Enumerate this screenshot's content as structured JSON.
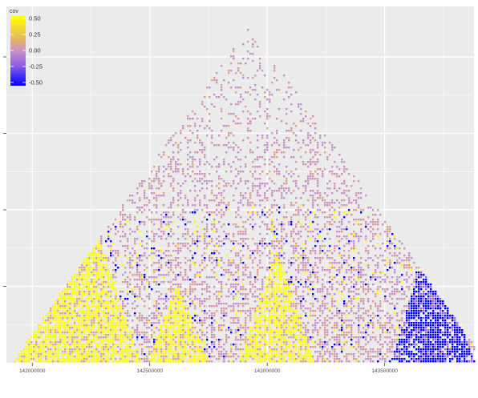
{
  "chart_data": {
    "type": "heatmap",
    "title": "",
    "xlabel": "",
    "ylabel": "",
    "x_ticks": [
      "142000000",
      "142500000",
      "143000000",
      "143500000"
    ],
    "x_tick_values": [
      142000000,
      142500000,
      143000000,
      143500000
    ],
    "xlim": [
      141890000,
      143880000
    ],
    "y_ticks_labeled": false,
    "y_tick_count": 4,
    "legend": {
      "title": "cov",
      "placement": "top-left",
      "labels": [
        "0.50",
        "0.25",
        "0.00",
        "-0.25",
        "-0.50"
      ],
      "values": [
        0.5,
        0.25,
        0.0,
        -0.25,
        -0.5
      ],
      "range": [
        -0.5,
        0.5
      ],
      "colors": {
        "low": "#0000ff",
        "mid": "#c891c8",
        "mid2": "#d9a38f",
        "high": "#ffff00"
      }
    },
    "grid": true,
    "panel_background": "#ebebeb",
    "gridline_color": "#ffffff",
    "description_regions": [
      {
        "x_start": 141890000,
        "x_end": 142460000,
        "peak_height_frac": 0.35,
        "dominant_cov": 0.5
      },
      {
        "x_start": 142480000,
        "x_end": 142750000,
        "peak_height_frac": 0.14,
        "dominant_cov": 0.5
      },
      {
        "x_start": 142870000,
        "x_end": 143200000,
        "peak_height_frac": 0.2,
        "dominant_cov": 0.5
      },
      {
        "x_start": 143520000,
        "x_end": 143880000,
        "peak_height_frac": 0.24,
        "dominant_cov": -0.5
      }
    ]
  }
}
